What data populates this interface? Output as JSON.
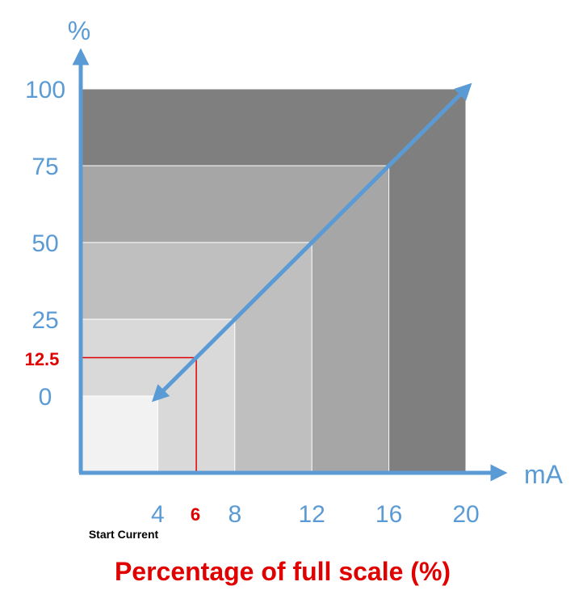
{
  "chart_data": {
    "type": "line",
    "title": "Percentage of full scale (%)",
    "x_unit_label": "mA",
    "y_unit_label": "%",
    "x_ticks": [
      "4",
      "8",
      "12",
      "16",
      "20"
    ],
    "y_ticks": [
      "0",
      "25",
      "50",
      "75",
      "100"
    ],
    "xlim": [
      0,
      20
    ],
    "ylim": [
      -25,
      100
    ],
    "series": [
      {
        "x": [
          4,
          20
        ],
        "y": [
          0,
          100
        ]
      }
    ],
    "highlight": {
      "x": 6,
      "y": 12.5,
      "x_label": "6",
      "y_label": "12.5",
      "color": "#E00000"
    },
    "annotation": "Start Current",
    "background_bands": [
      {
        "x_max": 4,
        "y_max": 0,
        "color": "#F2F2F2"
      },
      {
        "x_max": 8,
        "y_max": 25,
        "color": "#D9D9D9"
      },
      {
        "x_max": 12,
        "y_max": 50,
        "color": "#BFBFBF"
      },
      {
        "x_max": 16,
        "y_max": 75,
        "color": "#A6A6A6"
      },
      {
        "x_max": 20,
        "y_max": 100,
        "color": "#7F7F7F"
      }
    ],
    "colors": {
      "axis": "#5B9BD5",
      "line": "#5B9BD5",
      "title": "#E00000"
    }
  }
}
